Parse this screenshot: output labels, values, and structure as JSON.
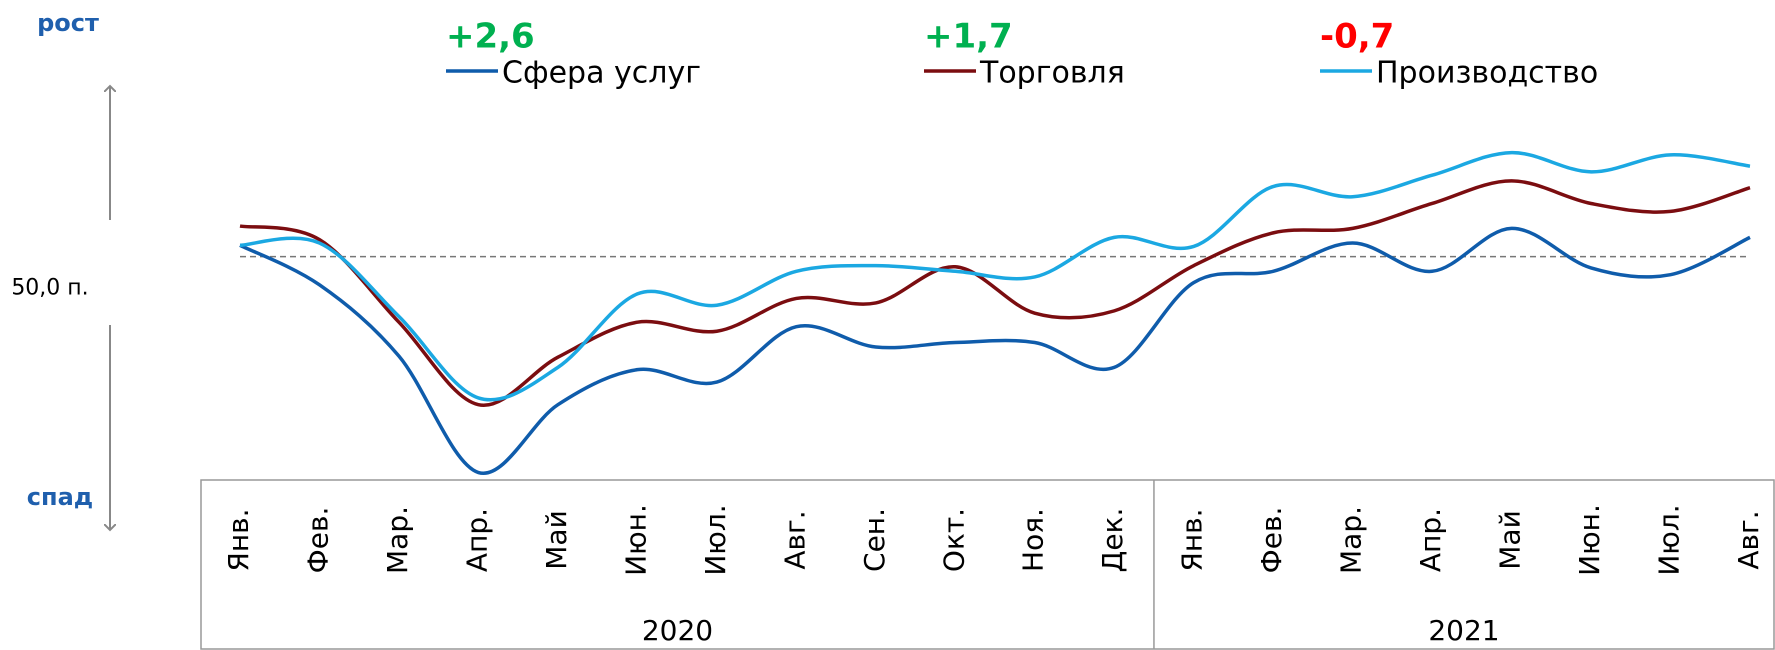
{
  "chart_data": {
    "type": "line",
    "categories": [
      "Янв.",
      "Фев.",
      "Мар.",
      "Апр.",
      "Май",
      "Июн.",
      "Июл.",
      "Авг.",
      "Сен.",
      "Окт.",
      "Ноя.",
      "Дек.",
      "Янв.",
      "Фев.",
      "Мар.",
      "Апр.",
      "Май",
      "Июн.",
      "Июл.",
      "Авг."
    ],
    "year_groups": [
      {
        "label": "2020",
        "count": 12
      },
      {
        "label": "2021",
        "count": 8
      }
    ],
    "series": [
      {
        "name": "Сфера услуг",
        "color": "#0f5cab",
        "change_label": "+2,6",
        "change_color": "#00b050",
        "values": [
          50.5,
          48.75,
          45.6,
          40.45,
          43.45,
          45,
          44.45,
          46.9,
          46,
          46.2,
          46.2,
          45.1,
          48.85,
          49.35,
          50.6,
          49.35,
          51.25,
          49.5,
          49.2,
          50.85
        ]
      },
      {
        "name": "Торговля",
        "color": "#7b0d10",
        "change_label": "+1,7",
        "change_color": "#00b050",
        "values": [
          51.35,
          50.75,
          47.1,
          43.45,
          45.55,
          47.1,
          46.7,
          48.15,
          47.95,
          49.55,
          47.5,
          47.6,
          49.6,
          51.05,
          51.25,
          52.35,
          53.35,
          52.35,
          52,
          53.05
        ]
      },
      {
        "name": "Производство",
        "color": "#1ba8e2",
        "change_label": "-0,7",
        "change_color": "#ff0000",
        "values": [
          50.5,
          50.6,
          47.35,
          43.75,
          45.1,
          48.35,
          47.85,
          49.35,
          49.6,
          49.35,
          49.1,
          50.85,
          50.45,
          53.1,
          52.65,
          53.6,
          54.6,
          53.75,
          54.5,
          54
        ]
      }
    ],
    "reference": {
      "value": 50,
      "label": "50,0 п."
    },
    "up_label": "рост",
    "down_label": "спад",
    "ylim": [
      40,
      57
    ]
  }
}
